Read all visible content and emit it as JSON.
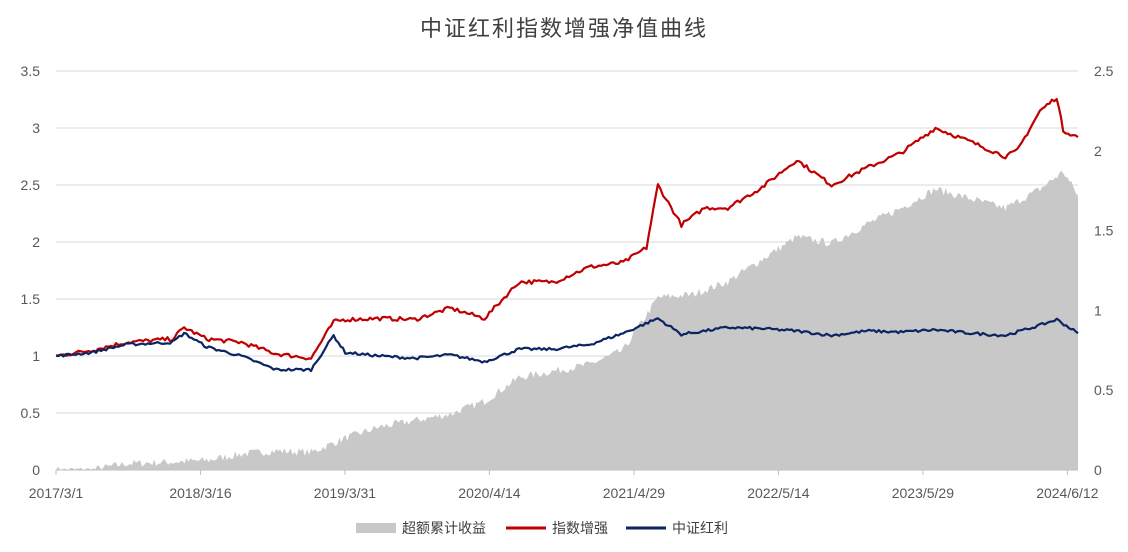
{
  "chart_data": {
    "type": "line",
    "title": "中证红利指数增强净值曲线",
    "x_ticks": [
      "2017/3/1",
      "2018/3/16",
      "2019/3/31",
      "2020/4/14",
      "2021/4/29",
      "2022/5/14",
      "2023/5/29",
      "2024/6/12"
    ],
    "x_range": [
      "2017/3/1",
      "2024/7/10"
    ],
    "y_left": {
      "ticks": [
        "0",
        "0.5",
        "1",
        "1.5",
        "2",
        "2.5",
        "3",
        "3.5"
      ],
      "ylim": [
        0,
        3.5
      ]
    },
    "y_right": {
      "ticks": [
        "0",
        "0.5",
        "1",
        "1.5",
        "2",
        "2.5"
      ],
      "ylim": [
        0,
        2.5
      ]
    },
    "grid": true,
    "legend_position": "bottom",
    "series": [
      {
        "name": "超额累计收益",
        "type": "area",
        "axis": "right",
        "color": "#c8c8c8",
        "x": [
          "2017/3/1",
          "2017/6/1",
          "2017/9/1",
          "2018/1/1",
          "2018/4/1",
          "2018/7/1",
          "2018/10/1",
          "2019/1/1",
          "2019/4/1",
          "2019/7/1",
          "2019/10/1",
          "2020/1/1",
          "2020/4/1",
          "2020/7/1",
          "2020/10/1",
          "2021/1/1",
          "2021/4/1",
          "2021/7/1",
          "2021/10/1",
          "2022/1/1",
          "2022/4/1",
          "2022/7/1",
          "2022/10/1",
          "2023/1/1",
          "2023/4/1",
          "2023/7/1",
          "2023/10/1",
          "2024/1/1",
          "2024/4/1",
          "2024/6/1",
          "2024/7/10"
        ],
        "values": [
          0,
          0,
          0.04,
          0.05,
          0.06,
          0.1,
          0.12,
          0.11,
          0.2,
          0.27,
          0.31,
          0.35,
          0.43,
          0.58,
          0.62,
          0.66,
          0.75,
          1.08,
          1.1,
          1.18,
          1.32,
          1.46,
          1.42,
          1.54,
          1.64,
          1.76,
          1.7,
          1.64,
          1.76,
          1.87,
          1.72
        ]
      },
      {
        "name": "指数增强",
        "type": "line",
        "axis": "left",
        "color": "#c00000",
        "x": [
          "2017/3/1",
          "2017/6/1",
          "2017/9/1",
          "2018/1/1",
          "2018/2/1",
          "2018/4/1",
          "2018/7/1",
          "2018/10/1",
          "2019/1/1",
          "2019/3/1",
          "2019/4/1",
          "2019/7/1",
          "2019/10/1",
          "2020/1/1",
          "2020/4/1",
          "2020/7/1",
          "2020/10/1",
          "2021/1/1",
          "2021/4/1",
          "2021/6/1",
          "2021/7/1",
          "2021/9/1",
          "2021/11/1",
          "2022/1/1",
          "2022/4/1",
          "2022/7/1",
          "2022/10/1",
          "2023/1/1",
          "2023/4/1",
          "2023/7/1",
          "2023/10/1",
          "2024/1/1",
          "2024/2/1",
          "2024/4/1",
          "2024/5/15",
          "2024/6/1",
          "2024/7/10"
        ],
        "values": [
          1.0,
          1.05,
          1.12,
          1.15,
          1.25,
          1.15,
          1.12,
          1.02,
          0.98,
          1.3,
          1.32,
          1.33,
          1.32,
          1.42,
          1.33,
          1.65,
          1.65,
          1.78,
          1.82,
          1.95,
          2.5,
          2.15,
          2.3,
          2.3,
          2.48,
          2.72,
          2.5,
          2.65,
          2.78,
          3.0,
          2.88,
          2.75,
          2.8,
          3.15,
          3.27,
          2.98,
          2.92
        ]
      },
      {
        "name": "中证红利",
        "type": "line",
        "axis": "left",
        "color": "#0d2462",
        "x": [
          "2017/3/1",
          "2017/6/1",
          "2017/9/1",
          "2018/1/1",
          "2018/2/1",
          "2018/4/1",
          "2018/7/1",
          "2018/10/1",
          "2019/1/1",
          "2019/3/1",
          "2019/4/1",
          "2019/7/1",
          "2019/10/1",
          "2020/1/1",
          "2020/4/1",
          "2020/7/1",
          "2020/10/1",
          "2021/1/1",
          "2021/4/1",
          "2021/7/1",
          "2021/9/1",
          "2022/1/1",
          "2022/4/1",
          "2022/7/1",
          "2022/10/1",
          "2023/1/1",
          "2023/4/1",
          "2023/7/1",
          "2023/10/1",
          "2024/1/1",
          "2024/4/1",
          "2024/5/15",
          "2024/7/10"
        ],
        "values": [
          1.0,
          1.03,
          1.1,
          1.12,
          1.2,
          1.08,
          1.0,
          0.88,
          0.88,
          1.18,
          1.03,
          1.0,
          0.98,
          1.01,
          0.95,
          1.06,
          1.06,
          1.1,
          1.2,
          1.33,
          1.19,
          1.25,
          1.24,
          1.22,
          1.18,
          1.22,
          1.21,
          1.23,
          1.2,
          1.18,
          1.27,
          1.32,
          1.2
        ]
      }
    ]
  }
}
